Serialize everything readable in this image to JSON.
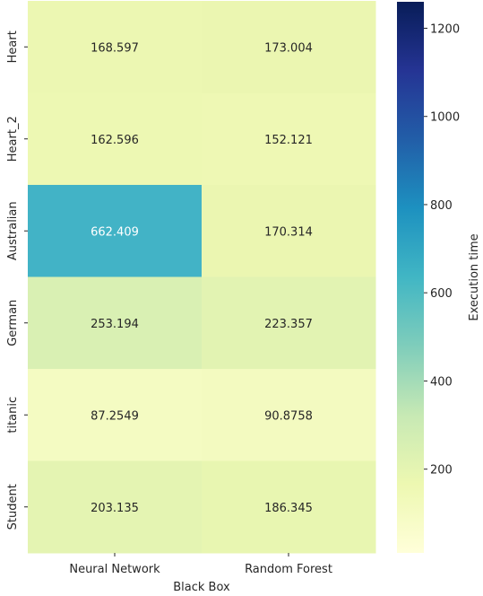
{
  "chart_data": {
    "type": "heatmap",
    "xlabel": "Black Box",
    "x_categories": [
      "Neural Network",
      "Random Forest"
    ],
    "y_categories": [
      "Heart",
      "Heart_2",
      "Australian",
      "German",
      "titanic",
      "Student"
    ],
    "values": [
      [
        168.597,
        173.004
      ],
      [
        162.596,
        152.121
      ],
      [
        662.409,
        170.314
      ],
      [
        253.194,
        223.357
      ],
      [
        87.2549,
        90.8758
      ],
      [
        203.135,
        186.345
      ]
    ],
    "value_labels": [
      [
        "168.597",
        "173.004"
      ],
      [
        "162.596",
        "152.121"
      ],
      [
        "662.409",
        "170.314"
      ],
      [
        "253.194",
        "223.357"
      ],
      [
        "87.2549",
        "90.8758"
      ],
      [
        "203.135",
        "186.345"
      ]
    ],
    "colormap": "YlGnBu",
    "colorbar": {
      "label": "Execution time",
      "range": [
        10,
        1260
      ],
      "ticks": [
        200,
        400,
        600,
        800,
        1000,
        1200
      ],
      "tick_labels": [
        "200",
        "400",
        "600",
        "800",
        "1000",
        "1200"
      ]
    },
    "cell_colors": [
      [
        "#ecf7b2",
        "#ebf6b1"
      ],
      [
        "#edf8b3",
        "#eef8b4"
      ],
      [
        "#42b3c6",
        "#ebf6b1"
      ],
      [
        "#d9f0b3",
        "#e2f3b2"
      ],
      [
        "#f4fbc2",
        "#f3fac0"
      ],
      [
        "#e4f4b2",
        "#e8f6b1"
      ]
    ],
    "text_colors": [
      [
        "#262626",
        "#262626"
      ],
      [
        "#262626",
        "#262626"
      ],
      [
        "#ffffff",
        "#262626"
      ],
      [
        "#262626",
        "#262626"
      ],
      [
        "#262626",
        "#262626"
      ],
      [
        "#262626",
        "#262626"
      ]
    ],
    "colorbar_stops": [
      "#ffffd9",
      "#edf8b1",
      "#c7e9b4",
      "#7fcdbb",
      "#41b6c4",
      "#1d91c0",
      "#225ea8",
      "#253494",
      "#081d58"
    ]
  }
}
